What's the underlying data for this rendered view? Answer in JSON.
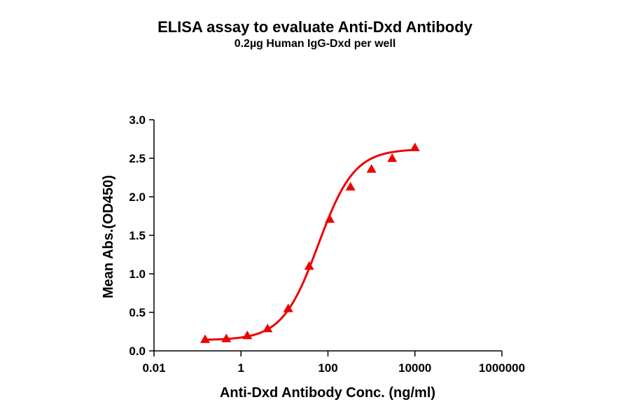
{
  "chart_data": {
    "type": "scatter",
    "title": "ELISA assay to evaluate Anti-Dxd Antibody",
    "subtitle": "0.2µg Human IgG-Dxd per well",
    "xlabel": "Anti-Dxd Antibody Conc. (ng/ml)",
    "ylabel": "Mean Abs.(OD450)",
    "xscale": "log",
    "xlim": [
      0.01,
      1000000
    ],
    "ylim": [
      0.0,
      3.0
    ],
    "x_ticks": [
      "0.01",
      "1",
      "100",
      "10000",
      "1000000"
    ],
    "y_ticks": [
      "0.0",
      "0.5",
      "1.0",
      "1.5",
      "2.0",
      "2.5",
      "3.0"
    ],
    "grid": false,
    "legend": null,
    "series": [
      {
        "name": "Anti-Dxd Antibody",
        "marker": "triangle",
        "color": "#ee0000",
        "fit": "4PL sigmoidal curve",
        "x": [
          0.15,
          0.46,
          1.4,
          4.1,
          12.2,
          37,
          110,
          330,
          1000,
          3000,
          10000
        ],
        "y": [
          0.15,
          0.16,
          0.2,
          0.29,
          0.55,
          1.1,
          1.71,
          2.13,
          2.36,
          2.5,
          2.64
        ]
      }
    ]
  },
  "colors": {
    "series": "#ee0000",
    "axis": "#000000"
  }
}
